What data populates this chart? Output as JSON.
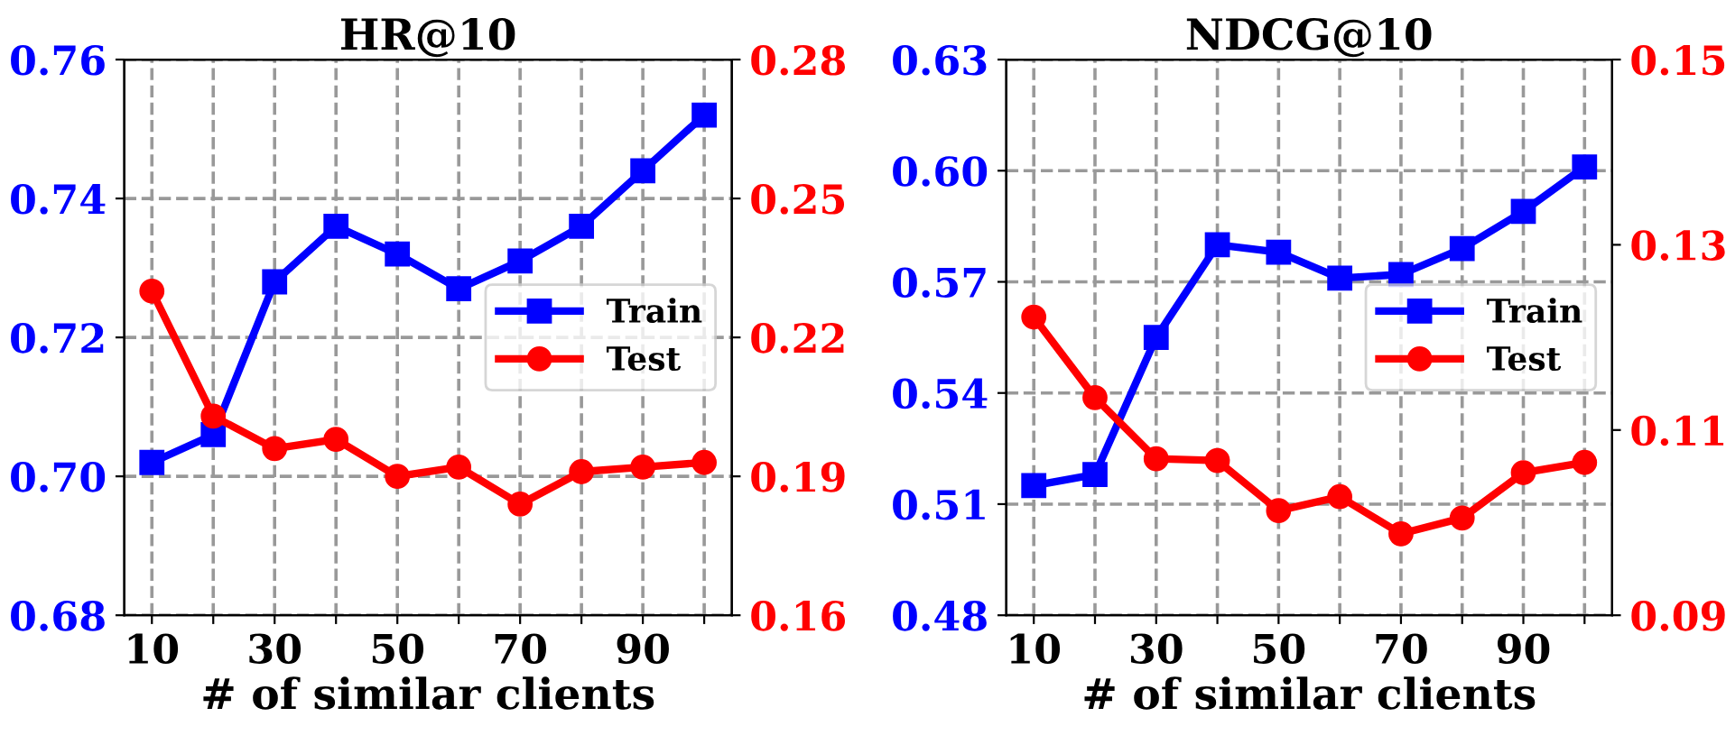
{
  "chart_data": [
    {
      "type": "line",
      "title": "HR@10",
      "xlabel": "# of similar clients",
      "x": [
        10,
        20,
        30,
        40,
        50,
        60,
        70,
        80,
        90,
        100
      ],
      "xlim": [
        5.5,
        104.5
      ],
      "xticks": [
        10,
        {
          "value": 20,
          "label": null
        },
        30,
        {
          "value": 40,
          "label": null
        },
        50,
        {
          "value": 60,
          "label": null
        },
        70,
        {
          "value": 80,
          "label": null
        },
        90,
        {
          "value": 100,
          "label": null
        }
      ],
      "ylim": [
        0.68,
        0.76
      ],
      "yticks": [
        {
          "value": 0.68,
          "label": "0.68"
        },
        {
          "value": 0.7,
          "label": "0.70"
        },
        {
          "value": 0.72,
          "label": "0.72"
        },
        {
          "value": 0.74,
          "label": "0.74"
        },
        {
          "value": 0.76,
          "label": "0.76"
        }
      ],
      "y2lim": [
        0.16,
        0.28
      ],
      "y2ticks": [
        {
          "value": 0.16,
          "label": "0.16"
        },
        0.19,
        0.22,
        0.25,
        {
          "value": 0.28,
          "label": "0.28"
        }
      ],
      "grid": true,
      "legend": "center right",
      "line_style": "solid",
      "series": [
        {
          "name": "Train",
          "color": "#0000ff",
          "marker": "square",
          "values": [
            0.702,
            0.706,
            0.728,
            0.736,
            0.732,
            0.727,
            0.731,
            0.736,
            0.744,
            0.752
          ]
        },
        {
          "name": "Test",
          "color": "#ff0000",
          "marker": "circle",
          "axis": "y2",
          "values": [
            0.23,
            0.203,
            0.196,
            0.198,
            0.19,
            0.192,
            0.184,
            0.191,
            0.192,
            0.193
          ]
        }
      ]
    },
    {
      "type": "line",
      "title": "NDCG@10",
      "xlabel": "# of similar clients",
      "x": [
        10,
        20,
        30,
        40,
        50,
        60,
        70,
        80,
        90,
        100
      ],
      "xlim": [
        5.5,
        104.5
      ],
      "xticks": [
        10,
        {
          "value": 20,
          "label": null
        },
        30,
        {
          "value": 40,
          "label": null
        },
        50,
        {
          "value": 60,
          "label": null
        },
        70,
        {
          "value": 80,
          "label": null
        },
        90,
        {
          "value": 100,
          "label": null
        }
      ],
      "ylim": [
        0.48,
        0.63
      ],
      "yticks": [
        0.48,
        0.51,
        0.54,
        0.57,
        {
          "value": 0.6,
          "label": "0.60"
        },
        0.63
      ],
      "y2lim": [
        0.09,
        0.15
      ],
      "y2ticks": [
        0.09,
        0.11,
        0.13,
        0.15
      ],
      "grid": true,
      "legend": "center right",
      "line_style": "solid",
      "series": [
        {
          "name": "Train",
          "color": "#0000ff",
          "marker": "square",
          "values": [
            0.515,
            0.518,
            0.555,
            0.58,
            0.578,
            0.571,
            0.572,
            0.579,
            0.589,
            0.601
          ]
        },
        {
          "name": "Test",
          "color": "#ff0000",
          "marker": "circle",
          "axis": "y2",
          "values": [
            0.1222,
            0.1135,
            0.1069,
            0.1067,
            0.1013,
            0.1028,
            0.0988,
            0.1005,
            0.1054,
            0.1065
          ]
        }
      ]
    }
  ]
}
